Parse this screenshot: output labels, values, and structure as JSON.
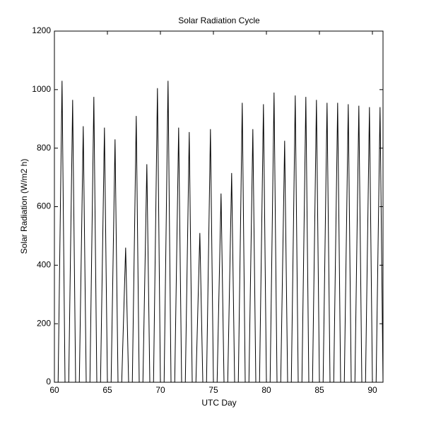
{
  "chart_data": {
    "type": "line",
    "title": "Solar Radiation Cycle",
    "x_label": "UTC Day",
    "y_label": "Solar Radiation (W/m2 h)",
    "color": "#000000",
    "xlim": [
      60,
      91
    ],
    "xticks": [
      60,
      65,
      70,
      75,
      80,
      85,
      90
    ],
    "ylim": [
      0,
      1200
    ],
    "yticks": [
      0,
      200,
      400,
      600,
      800,
      1000,
      1200
    ],
    "x": [
      60.35,
      60.72,
      61,
      61.35,
      61.72,
      62,
      62.35,
      62.72,
      63,
      63.35,
      63.72,
      64,
      64.35,
      64.72,
      65,
      65.35,
      65.72,
      66,
      66.35,
      66.72,
      67,
      67.35,
      67.72,
      68,
      68.35,
      68.72,
      69,
      69.35,
      69.72,
      70,
      70.35,
      70.72,
      71,
      71.35,
      71.72,
      72,
      72.35,
      72.72,
      73,
      73.35,
      73.72,
      74,
      74.35,
      74.72,
      75,
      75.35,
      75.72,
      76,
      76.35,
      76.72,
      77,
      77.35,
      77.72,
      78,
      78.35,
      78.72,
      79,
      79.35,
      79.72,
      80,
      80.35,
      80.72,
      81,
      81.35,
      81.72,
      82,
      82.35,
      82.72,
      83,
      83.35,
      83.72,
      84,
      84.35,
      84.72,
      85,
      85.35,
      85.72,
      86,
      86.35,
      86.72,
      87,
      87.35,
      87.72,
      88,
      88.35,
      88.72,
      89,
      89.35,
      89.72,
      90,
      90.35,
      90.72,
      91
    ],
    "values": [
      0,
      1030,
      0,
      0,
      965,
      0,
      0,
      875,
      0,
      0,
      975,
      0,
      0,
      870,
      0,
      0,
      830,
      0,
      0,
      460,
      0,
      0,
      910,
      0,
      0,
      745,
      0,
      0,
      1005,
      0,
      0,
      1030,
      0,
      0,
      870,
      0,
      0,
      855,
      0,
      0,
      510,
      0,
      0,
      865,
      0,
      0,
      645,
      0,
      0,
      715,
      0,
      0,
      955,
      0,
      0,
      865,
      0,
      0,
      950,
      0,
      0,
      990,
      0,
      0,
      825,
      0,
      0,
      980,
      0,
      0,
      975,
      0,
      0,
      965,
      0,
      0,
      955,
      0,
      0,
      955,
      0,
      0,
      950,
      0,
      0,
      945,
      0,
      0,
      940,
      0,
      0,
      940,
      0
    ]
  }
}
